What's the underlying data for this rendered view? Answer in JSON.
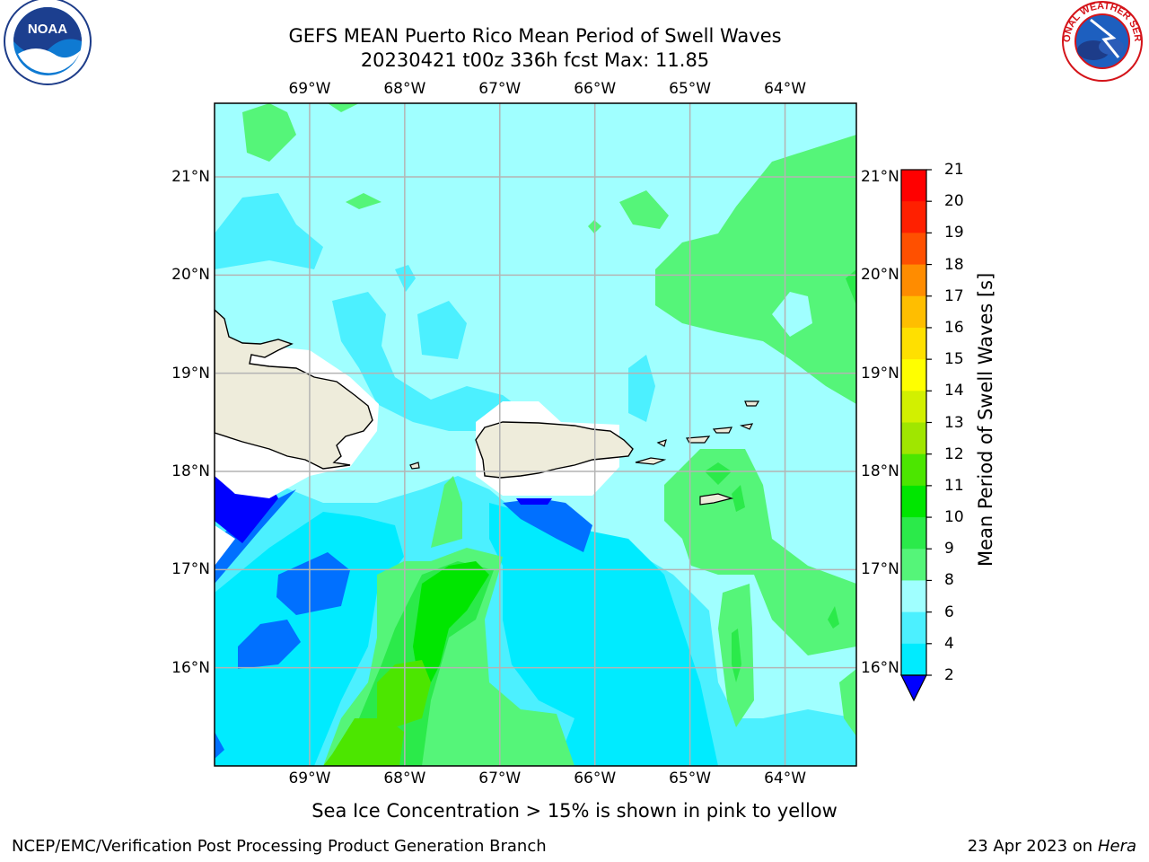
{
  "title_line1": "GEFS MEAN Puerto Rico Mean Period of Swell Waves",
  "title_line2": "20230421 t00z 336h fcst   Max: 11.85",
  "subtitle": "Sea Ice Concentration > 15% is shown in pink to yellow",
  "footer_left": "NCEP/EMC/Verification Post Processing Product Generation Branch",
  "footer_date": "23 Apr 2023 on ",
  "footer_host": "Hera",
  "logos": {
    "left": "NOAA",
    "right": "NATIONAL WEATHER SERVICE"
  },
  "map": {
    "lon_ticks": [
      "69°W",
      "68°W",
      "67°W",
      "66°W",
      "65°W",
      "64°W"
    ],
    "lat_ticks": [
      "21°N",
      "20°N",
      "19°N",
      "18°N",
      "17°N",
      "16°N"
    ],
    "lon_range": [
      -70.0,
      -63.25
    ],
    "lat_range": [
      15.0,
      21.75
    ],
    "lon_values": [
      -69,
      -68,
      -67,
      -66,
      -65,
      -64
    ],
    "lat_values": [
      21,
      20,
      19,
      18,
      17,
      16
    ]
  },
  "colorbar": {
    "label": "Mean Period of Swell Waves [s]",
    "ticks": [
      "2",
      "4",
      "6",
      "8",
      "9",
      "10",
      "11",
      "12",
      "13",
      "14",
      "15",
      "16",
      "17",
      "18",
      "19",
      "20",
      "21"
    ],
    "colors": [
      "#0000ff",
      "#0070ff",
      "#00ebff",
      "#4cf0ff",
      "#a0ffff",
      "#55f579",
      "#2bea4a",
      "#00e600",
      "#4ce600",
      "#a0e600",
      "#d2f000",
      "#ffff00",
      "#ffe000",
      "#ffbe00",
      "#ff8c00",
      "#ff5000",
      "#ff2000",
      "#ff0000"
    ]
  },
  "colors": {
    "land": "#eeecdb",
    "grid": "#b4b4b4",
    "nodata": "#ffffff"
  }
}
